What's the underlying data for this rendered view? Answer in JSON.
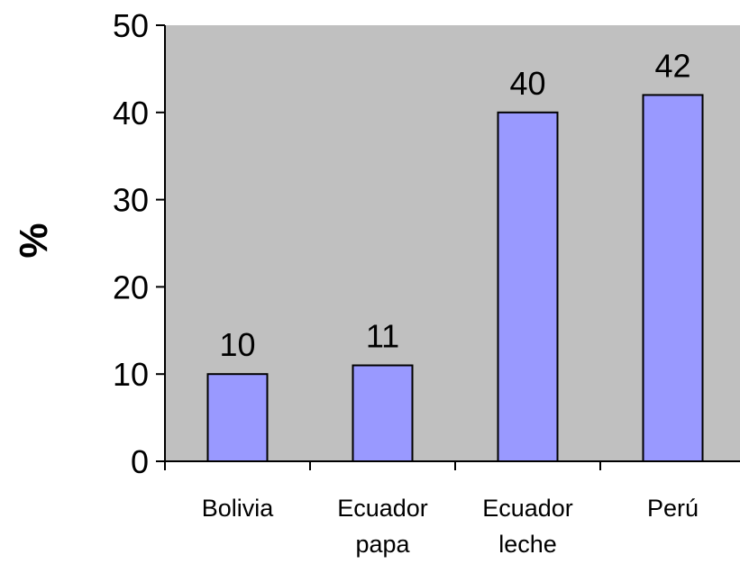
{
  "chart_data": {
    "type": "bar",
    "categories": [
      [
        "Bolivia"
      ],
      [
        "Ecuador",
        "papa"
      ],
      [
        "Ecuador",
        "leche"
      ],
      [
        "Perú"
      ]
    ],
    "values": [
      10,
      11,
      40,
      42
    ],
    "data_labels": [
      "10",
      "11",
      "40",
      "42"
    ],
    "ylabel": "%",
    "ylim": [
      0,
      50
    ],
    "yticks": [
      0,
      10,
      20,
      30,
      40,
      50
    ],
    "ytick_labels": [
      "0",
      "10",
      "20",
      "30",
      "40",
      "50"
    ],
    "grid": false,
    "legend": "none",
    "colors": {
      "bar": "#9999ff",
      "plot_background": "#c0c0c0",
      "axis": "#000000"
    }
  }
}
